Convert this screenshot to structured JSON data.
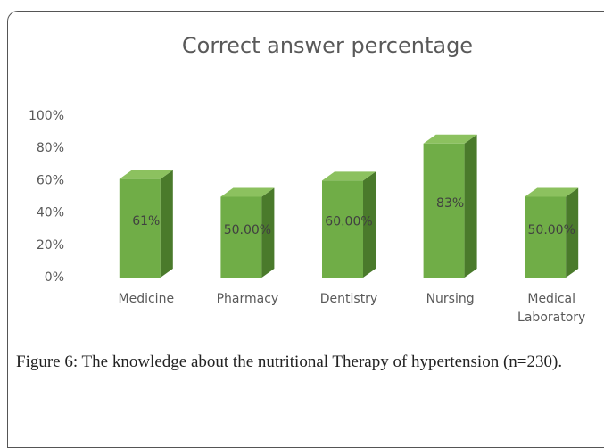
{
  "chart_data": {
    "type": "bar3d",
    "title": "Correct answer percentage",
    "categories": [
      "Medicine",
      "Pharmacy",
      "Dentistry",
      "Nursing",
      "Medical Laboratory"
    ],
    "values": [
      61,
      50,
      60,
      83,
      50
    ],
    "value_labels": [
      "61%",
      "50.00%",
      "60.00%",
      "83%",
      "50.00%"
    ],
    "color": "#70ad47",
    "ylim": [
      0,
      100
    ],
    "yticks": [
      {
        "value": 0,
        "label": "0%"
      },
      {
        "value": 20,
        "label": "20%"
      },
      {
        "value": 40,
        "label": "40%"
      },
      {
        "value": 60,
        "label": "60%"
      },
      {
        "value": 80,
        "label": "80%"
      },
      {
        "value": 100,
        "label": "100%"
      }
    ]
  },
  "caption": "Figure 6: The knowledge about the nutritional Therapy of hypertension (n=230)."
}
